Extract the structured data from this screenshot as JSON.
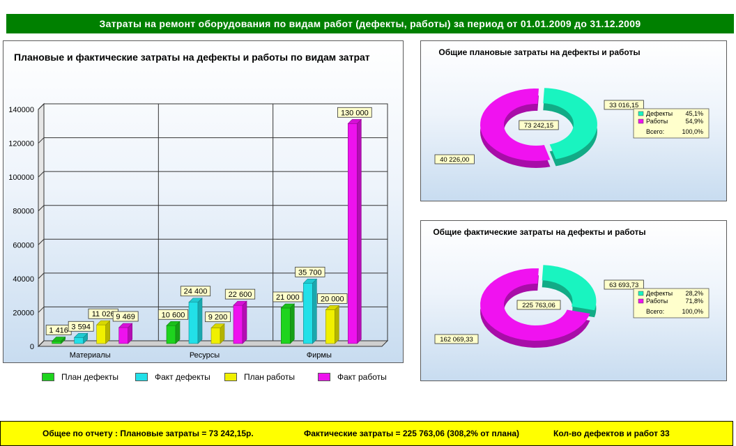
{
  "header": {
    "title": "Затраты на ремонт оборудования по видам работ (дефекты, работы) за период  от  01.01.2009  до  31.12.2009"
  },
  "colors": {
    "plan_defects": "#1ed41e",
    "fact_defects": "#22e0e8",
    "plan_works": "#f0f000",
    "fact_works": "#ee12ee",
    "pie_defects": "#19f4c0",
    "pie_works": "#f012f0"
  },
  "chart_data": [
    {
      "type": "bar",
      "title": "Плановые и фактические затраты на дефекты и работы по видам затрат",
      "categories": [
        "Материалы",
        "Ресурсы",
        "Фирмы"
      ],
      "ylim": [
        0,
        140000
      ],
      "yticks": [
        "0",
        "20000",
        "40000",
        "60000",
        "80000",
        "100000",
        "120000",
        "140000"
      ],
      "grid": true,
      "legend_position": "bottom",
      "series": [
        {
          "name": "План дефекты",
          "values": [
            1416,
            10600,
            21000
          ],
          "labels": [
            "1 416",
            "10 600",
            "21 000"
          ]
        },
        {
          "name": "Факт дефекты",
          "values": [
            3594,
            24400,
            35700
          ],
          "labels": [
            "3 594",
            "24 400",
            "35 700"
          ]
        },
        {
          "name": "План работы",
          "values": [
            11026,
            9200,
            20000
          ],
          "labels": [
            "11 026",
            "9 200",
            "20 000"
          ]
        },
        {
          "name": "Факт работы",
          "values": [
            9469,
            22600,
            130000
          ],
          "labels": [
            "9 469",
            "22 600",
            "130 000"
          ]
        }
      ]
    },
    {
      "type": "pie",
      "title": "Общие плановые затраты на дефекты и работы",
      "center_label": "73 242,15",
      "slices": [
        {
          "name": "Дефекты",
          "value": 33016.15,
          "label": "33 016,15",
          "percent": "45,1%"
        },
        {
          "name": "Работы",
          "value": 40226.0,
          "label": "40 226,00",
          "percent": "54,9%"
        }
      ],
      "total": {
        "name": "Всего:",
        "percent": "100,0%"
      },
      "legend_position": "right"
    },
    {
      "type": "pie",
      "title": "Общие фактические затраты на дефекты и работы",
      "center_label": "225 763,06",
      "slices": [
        {
          "name": "Дефекты",
          "value": 63693.73,
          "label": "63 693,73",
          "percent": "28,2%"
        },
        {
          "name": "Работы",
          "value": 162069.33,
          "label": "162 069,33",
          "percent": "71,8%"
        }
      ],
      "total": {
        "name": "Всего:",
        "percent": "100,0%"
      },
      "legend_position": "right"
    }
  ],
  "footer": {
    "total_label": "Общее по отчету :  Плановые затраты = 73 242,15р.",
    "fact_label": "Фактические затраты = 225 763,06 (308,2% от плана)",
    "count_label": "Кол-во дефектов и работ   33"
  }
}
